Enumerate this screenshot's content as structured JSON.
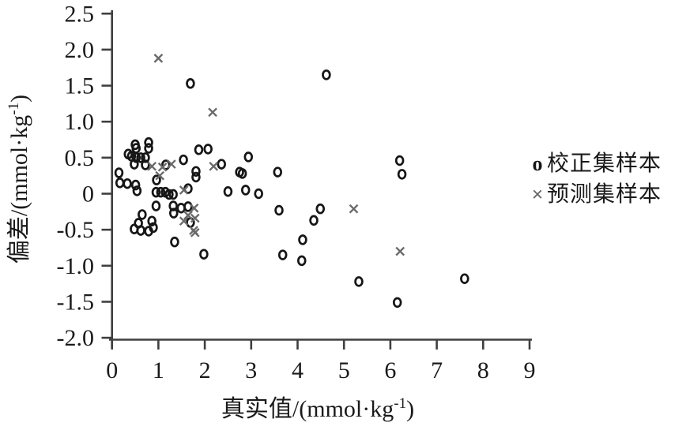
{
  "colors": {
    "marker_circle": "#161616",
    "marker_cross": "#6a6a6a",
    "axis": "#3f3f3f",
    "text": "#1a1a1a"
  },
  "axes": {
    "x_title_main": "真实值/(mmol·kg",
    "x_title_sup": "-1",
    "x_title_close": ")",
    "y_title_main": "偏差/(mmol·kg",
    "y_title_sup": "-1",
    "y_title_close": ")"
  },
  "legend": {
    "items": [
      {
        "marker": "o",
        "label": "校正集样本"
      },
      {
        "marker": "×",
        "label": "预测集样本"
      }
    ]
  },
  "chart_data": {
    "type": "scatter",
    "title": "",
    "xlabel": "真实值/(mmol·kg⁻¹)",
    "ylabel": "偏差/(mmol·kg⁻¹)",
    "xlim": [
      0,
      9
    ],
    "ylim": [
      -2.0,
      2.5
    ],
    "grid": false,
    "legend_position": "right-middle",
    "x_ticks": [
      0,
      1,
      2,
      3,
      4,
      5,
      6,
      7,
      8,
      9
    ],
    "y_ticks": [
      2.5,
      2.0,
      1.5,
      1.0,
      0.5,
      0,
      -0.5,
      -1.0,
      -1.5,
      -2.0
    ],
    "y_tick_labels": [
      "2.5",
      "2.0",
      "1.5",
      "1.0",
      "0.5",
      "0",
      "-0.5",
      "-1.0",
      "-1.5",
      "-2.0"
    ],
    "series": [
      {
        "name": "校正集样本",
        "marker": "circle",
        "points": [
          [
            0.5,
            0.68
          ],
          [
            0.79,
            0.71
          ],
          [
            0.52,
            0.63
          ],
          [
            0.79,
            0.63
          ],
          [
            1.87,
            0.61
          ],
          [
            2.07,
            0.62
          ],
          [
            0.35,
            0.55
          ],
          [
            0.42,
            0.52
          ],
          [
            0.52,
            0.5
          ],
          [
            0.62,
            0.5
          ],
          [
            0.72,
            0.5
          ],
          [
            1.54,
            0.47
          ],
          [
            0.48,
            0.41
          ],
          [
            0.72,
            0.4
          ],
          [
            1.16,
            0.4
          ],
          [
            2.36,
            0.41
          ],
          [
            1.81,
            0.31
          ],
          [
            1.81,
            0.23
          ],
          [
            2.75,
            0.3
          ],
          [
            0.15,
            0.29
          ],
          [
            0.96,
            0.19
          ],
          [
            0.17,
            0.15
          ],
          [
            0.33,
            0.14
          ],
          [
            0.51,
            0.12
          ],
          [
            0.54,
            0.04
          ],
          [
            0.95,
            0.02
          ],
          [
            1.05,
            0.02
          ],
          [
            1.15,
            0.02
          ],
          [
            1.23,
            -0.01
          ],
          [
            1.32,
            -0.01
          ],
          [
            1.64,
            0.07
          ],
          [
            2.5,
            0.03
          ],
          [
            2.94,
            0.51
          ],
          [
            2.81,
            0.28
          ],
          [
            3.57,
            0.3
          ],
          [
            2.88,
            0.05
          ],
          [
            3.16,
            0.0
          ],
          [
            0.95,
            -0.17
          ],
          [
            1.32,
            -0.17
          ],
          [
            1.33,
            -0.27
          ],
          [
            1.49,
            -0.2
          ],
          [
            1.64,
            -0.18
          ],
          [
            1.69,
            -0.4
          ],
          [
            0.65,
            -0.29
          ],
          [
            0.57,
            -0.41
          ],
          [
            0.86,
            -0.38
          ],
          [
            0.89,
            -0.47
          ],
          [
            0.48,
            -0.49
          ],
          [
            0.62,
            -0.51
          ],
          [
            0.79,
            -0.52
          ],
          [
            1.35,
            -0.67
          ],
          [
            1.98,
            -0.84
          ],
          [
            3.6,
            -0.23
          ],
          [
            4.49,
            -0.21
          ],
          [
            4.35,
            -0.37
          ],
          [
            4.11,
            -0.64
          ],
          [
            3.68,
            -0.85
          ],
          [
            4.09,
            -0.93
          ],
          [
            4.62,
            1.65
          ],
          [
            1.69,
            1.53
          ],
          [
            6.2,
            0.46
          ],
          [
            6.25,
            0.27
          ],
          [
            5.32,
            -1.22
          ],
          [
            7.6,
            -1.18
          ],
          [
            6.15,
            -1.51
          ]
        ]
      },
      {
        "name": "预测集样本",
        "marker": "cross",
        "points": [
          [
            1.0,
            1.88
          ],
          [
            2.17,
            1.13
          ],
          [
            0.86,
            0.38
          ],
          [
            1.09,
            0.37
          ],
          [
            1.28,
            0.41
          ],
          [
            2.19,
            0.38
          ],
          [
            1.03,
            0.25
          ],
          [
            1.55,
            0.05
          ],
          [
            1.77,
            -0.2
          ],
          [
            1.64,
            -0.3
          ],
          [
            1.55,
            -0.38
          ],
          [
            1.79,
            -0.34
          ],
          [
            1.76,
            -0.51
          ],
          [
            1.79,
            -0.54
          ],
          [
            5.21,
            -0.21
          ],
          [
            6.21,
            -0.8
          ]
        ]
      }
    ]
  }
}
